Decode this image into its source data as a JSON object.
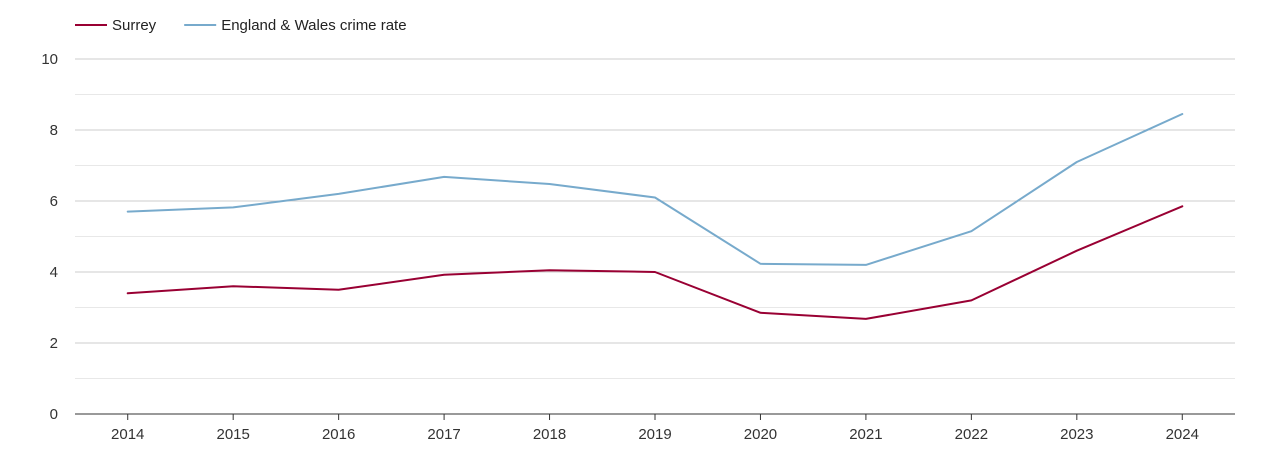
{
  "chart_data": {
    "type": "line",
    "title": "",
    "xlabel": "",
    "ylabel": "",
    "categories": [
      "2014",
      "2015",
      "2016",
      "2017",
      "2018",
      "2019",
      "2020",
      "2021",
      "2022",
      "2023",
      "2024"
    ],
    "ylim": [
      0,
      10
    ],
    "yticks": [
      "0",
      "2",
      "4",
      "6",
      "8",
      "10"
    ],
    "grid": true,
    "legend_position": "top-left",
    "series": [
      {
        "name": "Surrey",
        "color": "#990033",
        "values": [
          3.4,
          3.6,
          3.5,
          3.92,
          4.05,
          4.0,
          2.85,
          2.68,
          3.2,
          4.6,
          5.85
        ]
      },
      {
        "name": "England & Wales crime rate",
        "color": "#77aacc",
        "values": [
          5.7,
          5.82,
          6.2,
          6.68,
          6.48,
          6.1,
          4.23,
          4.2,
          5.15,
          7.1,
          8.45
        ]
      }
    ]
  }
}
